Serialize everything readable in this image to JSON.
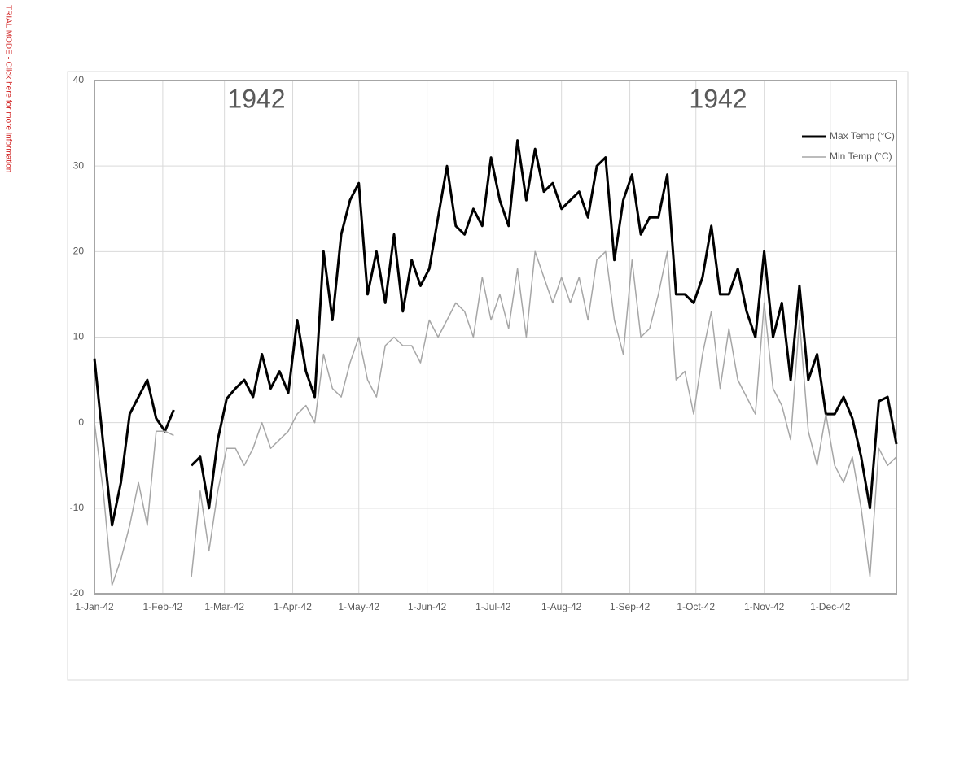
{
  "watermark": "TRIAL MODE - Click here for more information",
  "chart_data": {
    "type": "line",
    "annotations": [
      "1942",
      "1942"
    ],
    "x": [
      "1942-01-01",
      "1942-01-05",
      "1942-01-09",
      "1942-01-13",
      "1942-01-17",
      "1942-01-21",
      "1942-01-25",
      "1942-01-29",
      "1942-02-02",
      "1942-02-06",
      "1942-02-10",
      "1942-02-14",
      "1942-02-18",
      "1942-02-22",
      "1942-02-26",
      "1942-03-02",
      "1942-03-06",
      "1942-03-10",
      "1942-03-14",
      "1942-03-18",
      "1942-03-22",
      "1942-03-26",
      "1942-03-30",
      "1942-04-03",
      "1942-04-07",
      "1942-04-11",
      "1942-04-15",
      "1942-04-19",
      "1942-04-23",
      "1942-04-27",
      "1942-05-01",
      "1942-05-05",
      "1942-05-09",
      "1942-05-13",
      "1942-05-17",
      "1942-05-21",
      "1942-05-25",
      "1942-05-29",
      "1942-06-02",
      "1942-06-06",
      "1942-06-10",
      "1942-06-14",
      "1942-06-18",
      "1942-06-22",
      "1942-06-26",
      "1942-06-30",
      "1942-07-04",
      "1942-07-08",
      "1942-07-12",
      "1942-07-16",
      "1942-07-20",
      "1942-07-24",
      "1942-07-28",
      "1942-08-01",
      "1942-08-05",
      "1942-08-09",
      "1942-08-13",
      "1942-08-17",
      "1942-08-21",
      "1942-08-25",
      "1942-08-29",
      "1942-09-02",
      "1942-09-06",
      "1942-09-10",
      "1942-09-14",
      "1942-09-18",
      "1942-09-22",
      "1942-09-26",
      "1942-09-30",
      "1942-10-04",
      "1942-10-08",
      "1942-10-12",
      "1942-10-16",
      "1942-10-20",
      "1942-10-24",
      "1942-10-28",
      "1942-11-01",
      "1942-11-05",
      "1942-11-09",
      "1942-11-13",
      "1942-11-17",
      "1942-11-21",
      "1942-11-25",
      "1942-11-29",
      "1942-12-03",
      "1942-12-07",
      "1942-12-11",
      "1942-12-15",
      "1942-12-19",
      "1942-12-23",
      "1942-12-27",
      "1942-12-31"
    ],
    "series": [
      {
        "name": "Max Temp (°C)",
        "color": "#000000",
        "width": 3,
        "values": [
          7.5,
          -2.5,
          -12,
          -7,
          1,
          3,
          5,
          0.5,
          -1,
          1.5,
          null,
          -5,
          -4,
          -10,
          -2,
          2.8,
          4,
          5,
          3,
          8,
          4,
          6,
          3.5,
          12,
          6,
          3,
          20,
          12,
          22,
          26,
          28,
          15,
          20,
          14,
          22,
          13,
          19,
          16,
          18,
          24,
          30,
          23,
          22,
          25,
          23,
          31,
          26,
          23,
          33,
          26,
          32,
          27,
          28,
          25,
          26,
          27,
          24,
          30,
          31,
          19,
          26,
          29,
          22,
          24,
          24,
          29,
          15,
          15,
          14,
          17,
          23,
          15,
          15,
          18,
          13,
          10,
          20,
          10,
          14,
          5,
          16,
          5,
          8,
          1,
          1,
          3,
          0.5,
          -4,
          -10,
          2.5,
          3,
          -2.5
        ]
      },
      {
        "name": "Min Temp (°C)",
        "color": "#a6a6a6",
        "width": 1.5,
        "values": [
          0,
          -8,
          -19,
          -16,
          -12,
          -7,
          -12,
          -1,
          -1,
          -1.5,
          null,
          -18,
          -8,
          -15,
          -8,
          -3,
          -3,
          -5,
          -3,
          0,
          -3,
          -2,
          -1,
          1,
          2,
          0,
          8,
          4,
          3,
          7,
          10,
          5,
          3,
          9,
          10,
          9,
          9,
          7,
          12,
          10,
          12,
          14,
          13,
          10,
          17,
          12,
          15,
          11,
          18,
          10,
          20,
          17,
          14,
          17,
          14,
          17,
          12,
          19,
          20,
          12,
          8,
          19,
          10,
          11,
          15,
          20,
          5,
          6,
          1,
          8,
          13,
          4,
          11,
          5,
          3,
          1,
          14,
          4,
          2,
          -2,
          12,
          -1,
          -5,
          1,
          -5,
          -7,
          -4,
          -10,
          -18,
          -3,
          -5,
          -4
        ]
      }
    ],
    "xlim": [
      "1942-01-01",
      "1942-12-31"
    ],
    "xticks": [
      {
        "value": "1942-01-01",
        "label": "1-Jan-42"
      },
      {
        "value": "1942-02-01",
        "label": "1-Feb-42"
      },
      {
        "value": "1942-03-01",
        "label": "1-Mar-42"
      },
      {
        "value": "1942-04-01",
        "label": "1-Apr-42"
      },
      {
        "value": "1942-05-01",
        "label": "1-May-42"
      },
      {
        "value": "1942-06-01",
        "label": "1-Jun-42"
      },
      {
        "value": "1942-07-01",
        "label": "1-Jul-42"
      },
      {
        "value": "1942-08-01",
        "label": "1-Aug-42"
      },
      {
        "value": "1942-09-01",
        "label": "1-Sep-42"
      },
      {
        "value": "1942-10-01",
        "label": "1-Oct-42"
      },
      {
        "value": "1942-11-01",
        "label": "1-Nov-42"
      },
      {
        "value": "1942-12-01",
        "label": "1-Dec-42"
      }
    ],
    "ylim": [
      -20,
      40
    ],
    "yticks": [
      -20,
      -10,
      0,
      10,
      20,
      30,
      40
    ],
    "grid": true,
    "legend": "upper right"
  }
}
